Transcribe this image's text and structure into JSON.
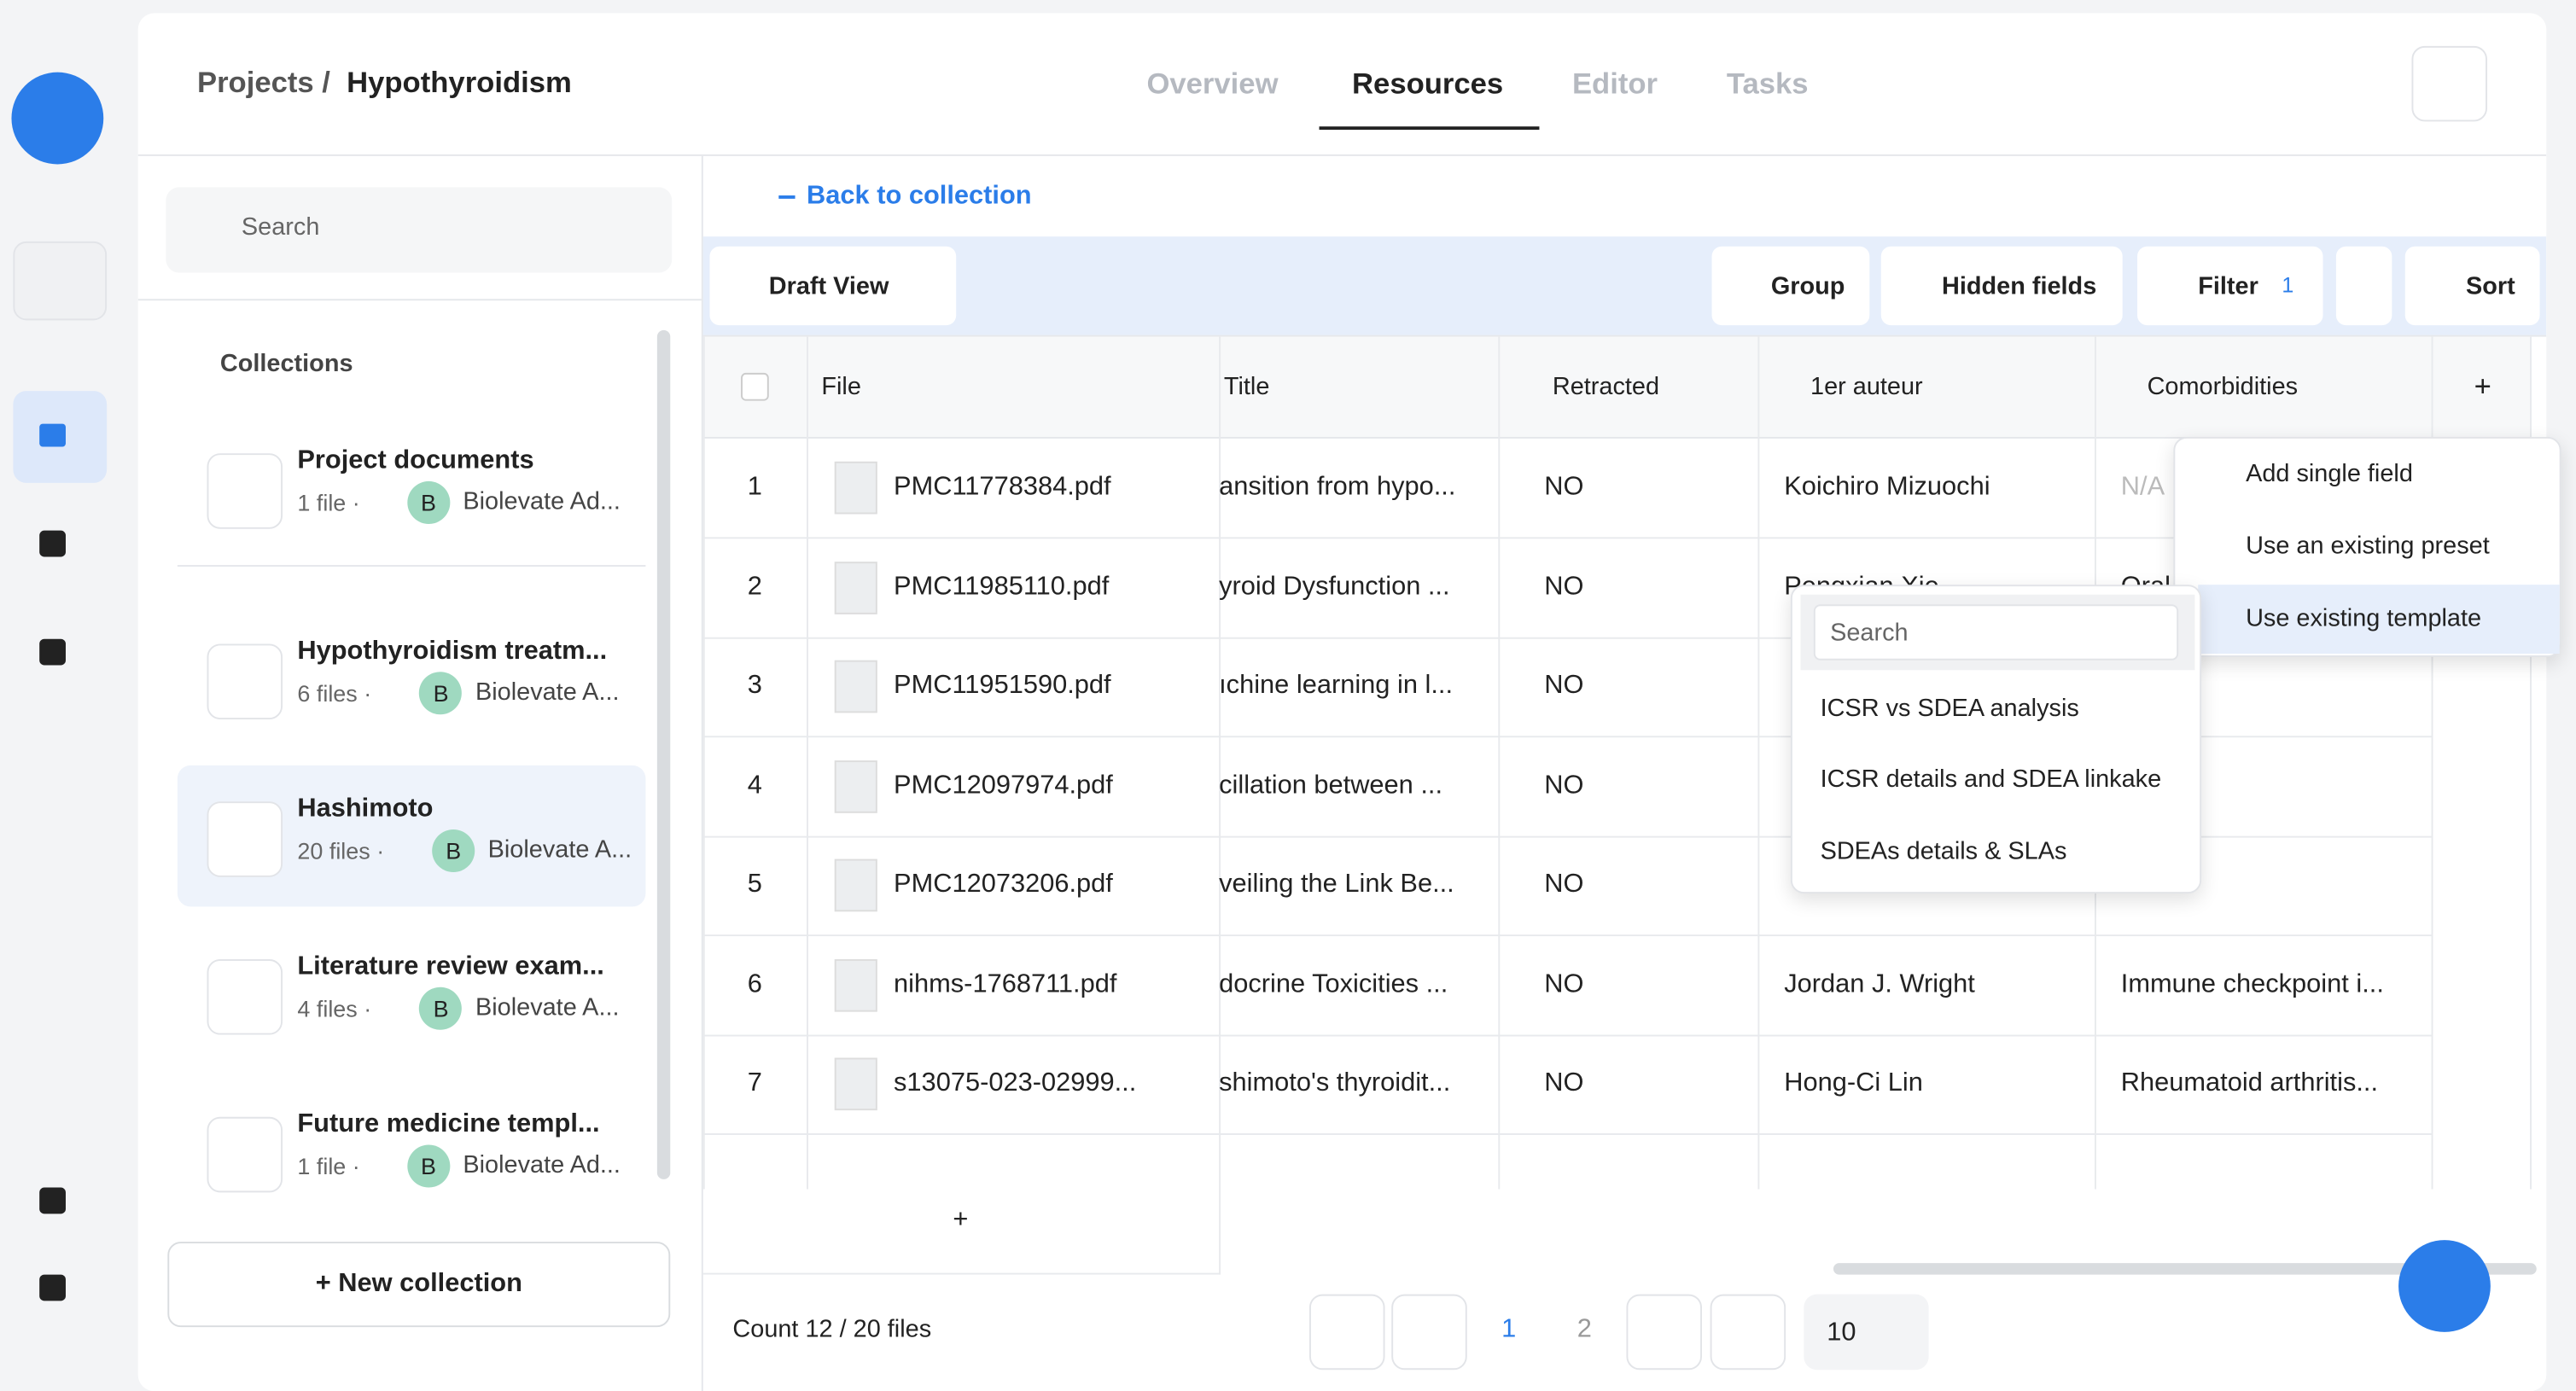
{
  "breadcrumb": {
    "parent": "Projects /",
    "current": "Hypothyroidism"
  },
  "tabs": [
    "Overview",
    "Resources",
    "Editor",
    "Tasks"
  ],
  "sidebar": {
    "search": "Search",
    "section": "Collections",
    "avatar": "B",
    "collections": [
      {
        "name": "Project documents",
        "files": "1 file ·",
        "owner": "Biolevate Ad..."
      },
      {
        "name": "Hypothyroidism treatm...",
        "files": "6 files ·",
        "owner": "Biolevate A..."
      },
      {
        "name": "Hashimoto",
        "files": "20 files ·",
        "owner": "Biolevate A..."
      },
      {
        "name": "Literature review exam...",
        "files": "4 files ·",
        "owner": "Biolevate A..."
      },
      {
        "name": "Future medicine templ...",
        "files": "1 file ·",
        "owner": "Biolevate Ad..."
      }
    ],
    "new_collection": "+ New collection"
  },
  "back": "Back to collection",
  "toolbar": {
    "view": "Draft View",
    "group": "Group",
    "hidden": "Hidden fields",
    "filter": "Filter",
    "filter_count": "1",
    "sort": "Sort"
  },
  "table": {
    "columns": [
      "File",
      "Title",
      "Retracted",
      "1er auteur",
      "Comorbidities"
    ],
    "rows": [
      [
        "1",
        "PMC11778384.pdf",
        "ansition from hypo...",
        "NO",
        "Koichiro Mizuochi",
        "N/A"
      ],
      [
        "2",
        "PMC11985110.pdf",
        "yroid Dysfunction ...",
        "NO",
        "Pengxian Xie",
        "Oral..."
      ],
      [
        "3",
        "PMC11951590.pdf",
        "ıchine learning in l...",
        "NO",
        null,
        null
      ],
      [
        "4",
        "PMC12097974.pdf",
        "cillation between ...",
        "NO",
        null,
        null
      ],
      [
        "5",
        "PMC12073206.pdf",
        "veiling the Link Be...",
        "NO",
        null,
        null
      ],
      [
        "6",
        "nihms-1768711.pdf",
        "docrine Toxicities ...",
        "NO",
        "Jordan J. Wright",
        "Immune checkpoint i..."
      ],
      [
        "7",
        "s13075-023-02999...",
        "shimoto's thyroidit...",
        "NO",
        "Hong-Ci Lin",
        "Rheumatoid arthritis..."
      ]
    ],
    "add_row": "+",
    "add_col": "+"
  },
  "menu": [
    "Add single field",
    "Use an existing preset",
    "Use existing template"
  ],
  "submenu": {
    "search": "Search",
    "items": [
      "ICSR vs SDEA analysis",
      "ICSR details and SDEA linkake",
      "SDEAs details & SLAs"
    ]
  },
  "footer": {
    "count": "Count 12 / 20 files",
    "pages": [
      "1",
      "2"
    ],
    "page_size": "10"
  }
}
